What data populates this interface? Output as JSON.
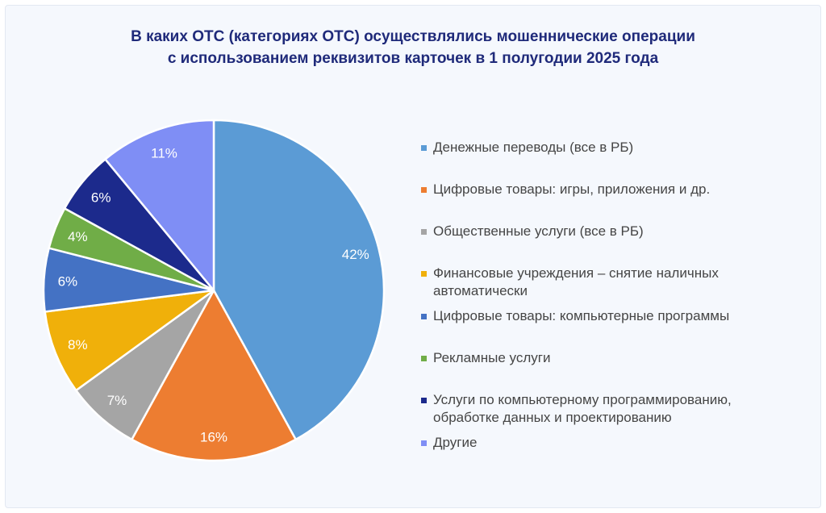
{
  "title": {
    "line1": "В каких ОТС (категориях ОТС) осуществлялись мошеннические операции",
    "line2": "с использованием реквизитов карточек в 1 полугодии 2025 года"
  },
  "chart_data": {
    "type": "pie",
    "title": "В каких ОТС (категориях ОТС) осуществлялись мошеннические операции с использованием реквизитов карточек в 1 полугодии 2025 года",
    "start": "top",
    "direction": "clockwise",
    "legend_position": "right",
    "slices": [
      {
        "name": "Денежные переводы (все в РБ)",
        "value": 42,
        "label": "42%",
        "color": "#5b9bd5"
      },
      {
        "name": "Цифровые товары: игры, приложения и др.",
        "value": 16,
        "label": "16%",
        "color": "#ed7d31"
      },
      {
        "name": "Общественные услуги (все в РБ)",
        "value": 7,
        "label": "7%",
        "color": "#a5a5a5"
      },
      {
        "name": "Финансовые учреждения – снятие наличных автоматически",
        "value": 8,
        "label": "8%",
        "color": "#f0b00a"
      },
      {
        "name": "Цифровые товары: компьютерные программы",
        "value": 6,
        "label": "6%",
        "color": "#4472c4"
      },
      {
        "name": "Рекламные услуги",
        "value": 4,
        "label": "4%",
        "color": "#70ad47"
      },
      {
        "name": "Услуги по компьютерному программированию, обработке данных и проектированию",
        "value": 6,
        "label": "6%",
        "color": "#1c2a8c"
      },
      {
        "name": "Другие",
        "value": 11,
        "label": "11%",
        "color": "#7f8ef5"
      }
    ]
  }
}
